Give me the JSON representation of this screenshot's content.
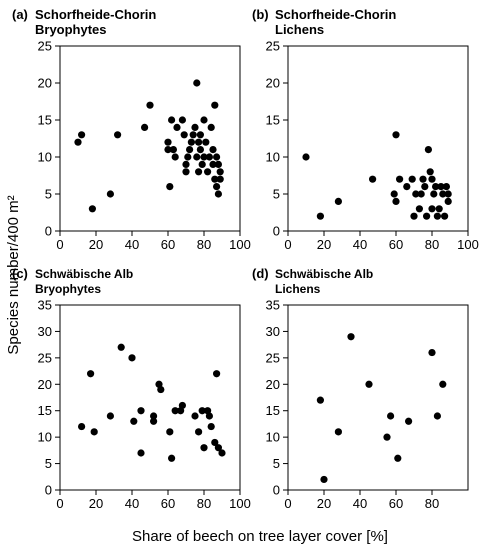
{
  "figure": {
    "ylabel": "Species number/400 m²",
    "xlabel": "Share of beech on tree layer cover [%]"
  },
  "chart_data": [
    {
      "type": "scatter",
      "panel": "(a)",
      "title_lines": [
        "Schorfheide-Chorin",
        "Bryophytes"
      ],
      "xlim": [
        0,
        100
      ],
      "ylim": [
        0,
        25
      ],
      "xticks": [
        "0",
        "20",
        "40",
        "60",
        "80",
        "100"
      ],
      "yticks": [
        "0",
        "5",
        "10",
        "15",
        "20",
        "25"
      ],
      "points": [
        [
          10,
          12
        ],
        [
          12,
          13
        ],
        [
          18,
          3
        ],
        [
          28,
          5
        ],
        [
          32,
          13
        ],
        [
          47,
          14
        ],
        [
          50,
          17
        ],
        [
          60,
          11
        ],
        [
          60,
          12
        ],
        [
          61,
          6
        ],
        [
          62,
          15
        ],
        [
          63,
          11
        ],
        [
          64,
          10
        ],
        [
          65,
          14
        ],
        [
          68,
          15
        ],
        [
          69,
          13
        ],
        [
          70,
          9
        ],
        [
          70,
          8
        ],
        [
          71,
          10
        ],
        [
          72,
          11
        ],
        [
          73,
          12
        ],
        [
          74,
          13
        ],
        [
          75,
          14
        ],
        [
          76,
          20
        ],
        [
          76,
          10
        ],
        [
          77,
          12
        ],
        [
          77,
          8
        ],
        [
          78,
          11
        ],
        [
          78,
          13
        ],
        [
          79,
          9
        ],
        [
          80,
          15
        ],
        [
          80,
          10
        ],
        [
          81,
          12
        ],
        [
          82,
          8
        ],
        [
          83,
          10
        ],
        [
          84,
          14
        ],
        [
          85,
          9
        ],
        [
          85,
          11
        ],
        [
          86,
          17
        ],
        [
          86,
          7
        ],
        [
          87,
          10
        ],
        [
          87,
          6
        ],
        [
          88,
          5
        ],
        [
          88,
          9
        ],
        [
          89,
          8
        ],
        [
          89,
          7
        ]
      ]
    },
    {
      "type": "scatter",
      "panel": "(b)",
      "title_lines": [
        "Schorfheide-Chorin",
        "Lichens"
      ],
      "xlim": [
        0,
        100
      ],
      "ylim": [
        0,
        25
      ],
      "xticks": [
        "0",
        "20",
        "40",
        "60",
        "80",
        "100"
      ],
      "yticks": [
        "0",
        "5",
        "10",
        "15",
        "20",
        "25"
      ],
      "points": [
        [
          10,
          10
        ],
        [
          18,
          2
        ],
        [
          28,
          4
        ],
        [
          47,
          7
        ],
        [
          59,
          5
        ],
        [
          60,
          13
        ],
        [
          60,
          4
        ],
        [
          62,
          7
        ],
        [
          66,
          6
        ],
        [
          69,
          7
        ],
        [
          70,
          2
        ],
        [
          71,
          5
        ],
        [
          73,
          3
        ],
        [
          74,
          5
        ],
        [
          75,
          7
        ],
        [
          76,
          6
        ],
        [
          77,
          2
        ],
        [
          78,
          11
        ],
        [
          79,
          8
        ],
        [
          80,
          3
        ],
        [
          80,
          7
        ],
        [
          81,
          5
        ],
        [
          82,
          6
        ],
        [
          83,
          2
        ],
        [
          84,
          3
        ],
        [
          85,
          6
        ],
        [
          86,
          5
        ],
        [
          87,
          2
        ],
        [
          88,
          6
        ],
        [
          89,
          4
        ],
        [
          89,
          5
        ]
      ]
    },
    {
      "type": "scatter",
      "panel": "(c)",
      "title_lines": [
        "Schwäbische Alb",
        "Bryophytes"
      ],
      "xlim": [
        0,
        100
      ],
      "ylim": [
        0,
        35
      ],
      "xticks": [
        "0",
        "20",
        "40",
        "60",
        "80",
        "100"
      ],
      "yticks": [
        "0",
        "5",
        "10",
        "15",
        "20",
        "25",
        "30",
        "35"
      ],
      "points": [
        [
          12,
          12
        ],
        [
          17,
          22
        ],
        [
          19,
          11
        ],
        [
          28,
          14
        ],
        [
          34,
          27
        ],
        [
          40,
          25
        ],
        [
          41,
          13
        ],
        [
          45,
          15
        ],
        [
          45,
          7
        ],
        [
          52,
          13
        ],
        [
          52,
          14
        ],
        [
          55,
          20
        ],
        [
          56,
          19
        ],
        [
          61,
          11
        ],
        [
          62,
          6
        ],
        [
          64,
          15
        ],
        [
          67,
          15
        ],
        [
          68,
          16
        ],
        [
          75,
          14
        ],
        [
          77,
          11
        ],
        [
          79,
          15
        ],
        [
          80,
          8
        ],
        [
          82,
          15
        ],
        [
          83,
          14
        ],
        [
          84,
          12
        ],
        [
          86,
          9
        ],
        [
          87,
          22
        ],
        [
          88,
          8
        ],
        [
          90,
          7
        ]
      ]
    },
    {
      "type": "scatter",
      "panel": "(d)",
      "title_lines": [
        "Schwäbische Alb",
        "Lichens"
      ],
      "xlim": [
        0,
        100
      ],
      "ylim": [
        0,
        35
      ],
      "xticks": [
        "0",
        "20",
        "40",
        "60",
        "80"
      ],
      "yticks": [
        "0",
        "5",
        "10",
        "15",
        "20",
        "25",
        "30",
        "35"
      ],
      "points": [
        [
          18,
          17
        ],
        [
          20,
          2
        ],
        [
          28,
          11
        ],
        [
          35,
          29
        ],
        [
          45,
          20
        ],
        [
          55,
          10
        ],
        [
          57,
          14
        ],
        [
          61,
          6
        ],
        [
          67,
          13
        ],
        [
          80,
          26
        ],
        [
          83,
          14
        ],
        [
          86,
          20
        ]
      ]
    }
  ]
}
